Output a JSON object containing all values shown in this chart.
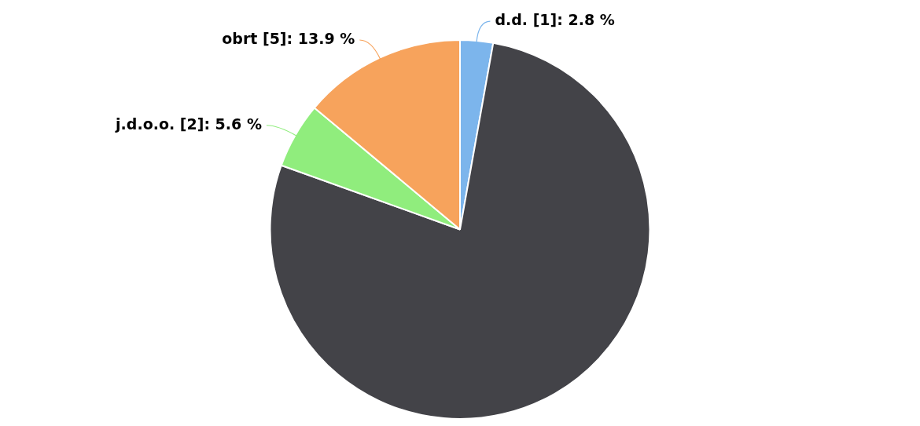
{
  "chart_data": {
    "type": "pie",
    "categories": [
      "d.d. [1]",
      null,
      "j.d.o.o. [2]",
      "obrt [5]"
    ],
    "values": [
      2.8,
      77.7,
      5.6,
      13.9
    ],
    "value_labels": [
      "2.8 %",
      null,
      "5.6 %",
      "13.9 %"
    ],
    "colors": [
      "#7cb5ec",
      "#434348",
      "#90ed7d",
      "#f7a35c"
    ],
    "legend": false
  }
}
